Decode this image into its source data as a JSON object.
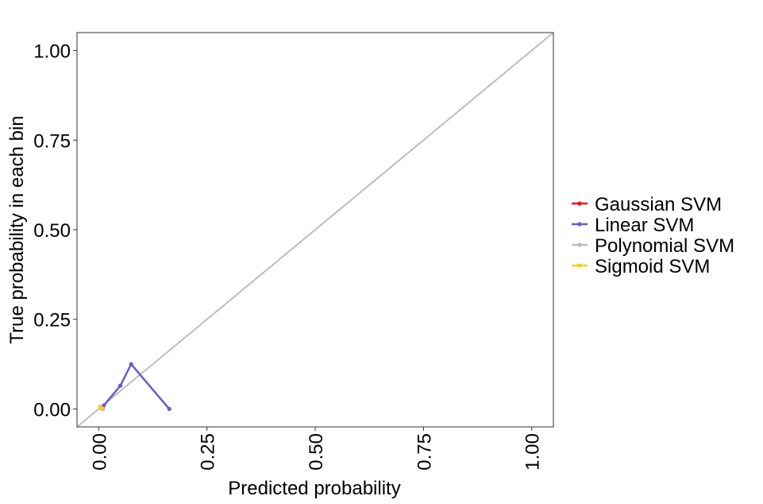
{
  "chart_data": {
    "type": "line",
    "title": "",
    "xlabel": "Predicted probability",
    "ylabel": "True probability in each bin",
    "xlim": [
      -0.05,
      1.05
    ],
    "ylim": [
      -0.05,
      1.05
    ],
    "x_ticks": [
      "0.00",
      "0.25",
      "0.50",
      "0.75",
      "1.00"
    ],
    "y_ticks": [
      "0.00",
      "0.25",
      "0.50",
      "0.75",
      "1.00"
    ],
    "x_tick_values": [
      0,
      0.25,
      0.5,
      0.75,
      1.0
    ],
    "y_tick_values": [
      0,
      0.25,
      0.5,
      0.75,
      1.0
    ],
    "grid": false,
    "legend_position": "right",
    "reference_line": {
      "from": [
        -0.05,
        -0.05
      ],
      "to": [
        1.05,
        1.05
      ],
      "color": "#bebebe"
    },
    "series": [
      {
        "name": "Gaussian SVM",
        "color": "#e41a1c",
        "x": [
          0.005,
          0.01
        ],
        "y": [
          0.003,
          0.0
        ]
      },
      {
        "name": "Linear SVM",
        "color": "#6a5acd",
        "x": [
          0.005,
          0.012,
          0.05,
          0.075,
          0.163
        ],
        "y": [
          0.003,
          0.01,
          0.065,
          0.125,
          0.0
        ]
      },
      {
        "name": "Polynomial SVM",
        "color": "#bebebe",
        "x": [
          0.005,
          0.01
        ],
        "y": [
          0.003,
          0.0
        ]
      },
      {
        "name": "Sigmoid SVM",
        "color": "#f2d21b",
        "x": [
          0.003,
          0.008
        ],
        "y": [
          0.006,
          0.002
        ]
      }
    ]
  }
}
